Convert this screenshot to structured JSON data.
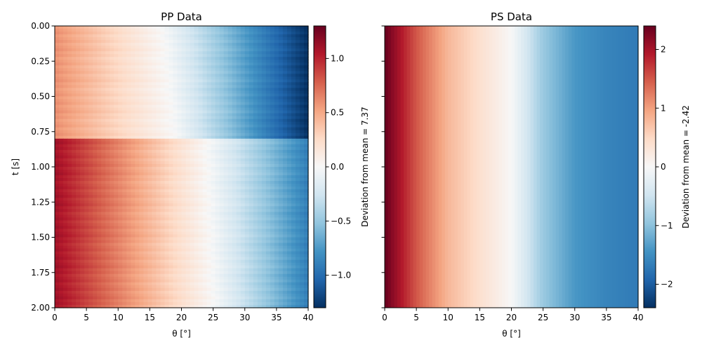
{
  "figure": {
    "colormap": "RdBu_r",
    "colors": {
      "low": "#053061",
      "mid": "#f7f7f7",
      "high": "#67001f",
      "axis": "#000000"
    }
  },
  "chart_data": [
    {
      "type": "heatmap",
      "title": "PP Data",
      "xlabel": "θ [°]",
      "ylabel": "t [s]",
      "xlim": [
        0,
        40
      ],
      "ylim": [
        2.0,
        0.0
      ],
      "x_ticks": [
        "0",
        "5",
        "10",
        "15",
        "20",
        "25",
        "30",
        "35",
        "40"
      ],
      "y_ticks": [
        "0.00",
        "0.25",
        "0.50",
        "0.75",
        "1.00",
        "1.25",
        "1.50",
        "1.75",
        "2.00"
      ],
      "value_range": [
        -1.3,
        1.3
      ],
      "zero_crossing_theta": [
        {
          "t": 0.0,
          "theta": 17
        },
        {
          "t": 0.8,
          "theta": 19
        },
        {
          "t": 0.8,
          "theta": 24
        },
        {
          "t": 2.0,
          "theta": 25
        }
      ],
      "row_bands": [
        {
          "t_start": 0.0,
          "t_end": 0.8,
          "value_at_0": 0.6,
          "value_at_40": -1.3
        },
        {
          "t_start": 0.8,
          "t_end": 2.0,
          "value_at_0": 1.1,
          "value_at_40": -0.9
        }
      ],
      "colorbar": {
        "label": "Deviation from mean = 7.37",
        "range": [
          -1.3,
          1.3
        ],
        "ticks": [
          "1.0",
          "0.5",
          "0.0",
          "−0.5",
          "−1.0"
        ],
        "tick_values": [
          1.0,
          0.5,
          0.0,
          -0.5,
          -1.0
        ]
      }
    },
    {
      "type": "heatmap",
      "title": "PS Data",
      "xlabel": "θ [°]",
      "xlim": [
        0,
        40
      ],
      "ylim": [
        2.0,
        0.0
      ],
      "x_ticks": [
        "0",
        "5",
        "10",
        "15",
        "20",
        "25",
        "30",
        "35",
        "40"
      ],
      "value_range": [
        -2.4,
        2.4
      ],
      "columns": [
        {
          "theta": 0,
          "value": 2.4
        },
        {
          "theta": 5,
          "value": 1.5
        },
        {
          "theta": 10,
          "value": 0.8
        },
        {
          "theta": 15,
          "value": 0.4
        },
        {
          "theta": 20,
          "value": 0.0
        },
        {
          "theta": 25,
          "value": -0.9
        },
        {
          "theta": 30,
          "value": -1.4
        },
        {
          "theta": 35,
          "value": -1.6
        },
        {
          "theta": 40,
          "value": -1.7
        }
      ],
      "colorbar": {
        "label": "Deviation from mean = -2.42",
        "range": [
          -2.4,
          2.4
        ],
        "ticks": [
          "2",
          "1",
          "0",
          "−1",
          "−2"
        ],
        "tick_values": [
          2,
          1,
          0,
          -1,
          -2
        ]
      }
    }
  ]
}
